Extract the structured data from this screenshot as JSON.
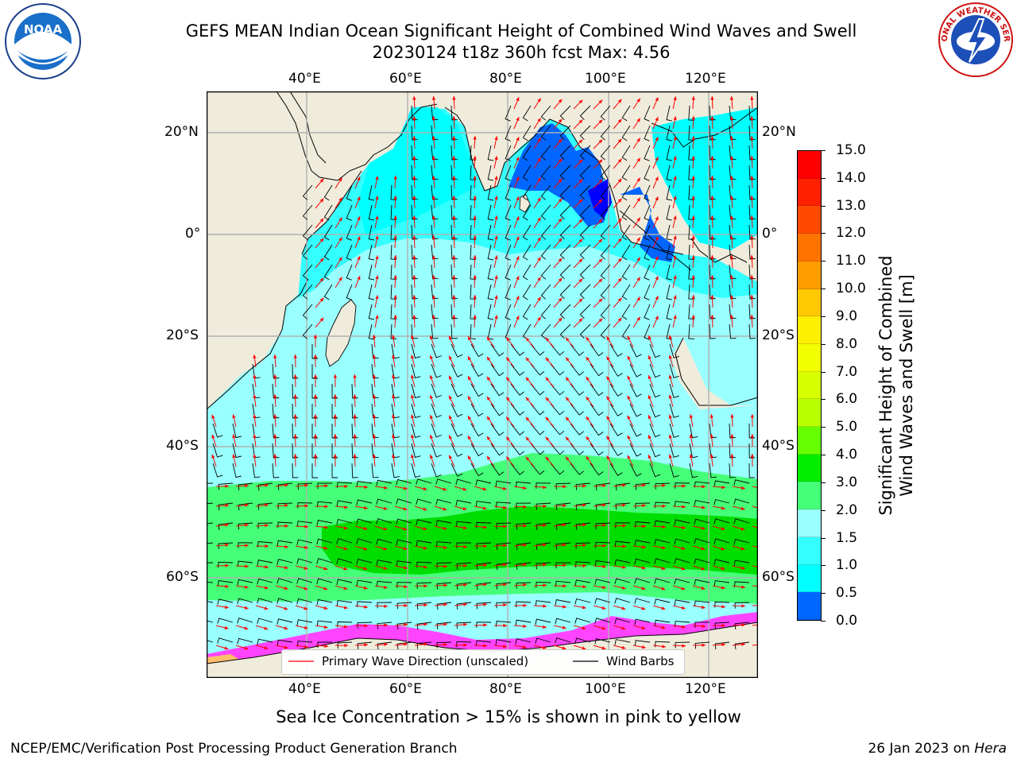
{
  "title": {
    "line1": "GEFS MEAN Indian Ocean Significant Height of Combined Wind Waves and Swell",
    "line2": "20230124 t18z 360h fcst   Max: 4.56"
  },
  "logos": {
    "left_text": "NOAA",
    "right_text": "NATIONAL WEATHER SERVICE"
  },
  "map": {
    "lon_ticks": [
      "40°E",
      "60°E",
      "80°E",
      "100°E",
      "120°E"
    ],
    "lat_ticks": [
      "20°N",
      "0°",
      "20°S",
      "40°S",
      "60°S"
    ],
    "colors": {
      "land": "#efecdc",
      "ocean_1": "#0000ff",
      "ocean_2": "#0066ff",
      "ocean_3": "#00ffff",
      "ocean_4": "#33ffff",
      "ocean_5": "#99ffff",
      "ocean_6": "#44ff77",
      "ocean_7": "#00dd00",
      "sea_ice": "#ff44ff",
      "wave_arrow": "#ff0000",
      "wind_barb": "#000000"
    },
    "legend": {
      "wave_label": "Primary Wave Direction (unscaled)",
      "barb_label": "Wind Barbs"
    }
  },
  "colorbar": {
    "title_line1": "Significant Height of Combined",
    "title_line2": "Wind Waves and Swell [m]",
    "levels": [
      "15.0",
      "14.0",
      "13.0",
      "12.0",
      "11.0",
      "10.0",
      "9.0",
      "8.0",
      "7.0",
      "6.0",
      "5.0",
      "4.0",
      "3.0",
      "2.0",
      "1.5",
      "1.0",
      "0.5",
      "0.0"
    ],
    "colors": [
      "#ff0000",
      "#ff2000",
      "#ff4a00",
      "#ff7400",
      "#ff9c00",
      "#ffc800",
      "#ffef00",
      "#f2ff00",
      "#d6ff00",
      "#b8ff00",
      "#66ff00",
      "#00ee00",
      "#44ff77",
      "#99ffff",
      "#33ffff",
      "#00ffff",
      "#0066ff",
      "#0000ff"
    ]
  },
  "caption": "Sea Ice Concentration > 15% is shown in pink to yellow",
  "footer": {
    "left": "NCEP/EMC/Verification Post Processing Product Generation Branch",
    "right_prefix": "26 Jan 2023 on ",
    "right_host": "Hera"
  }
}
